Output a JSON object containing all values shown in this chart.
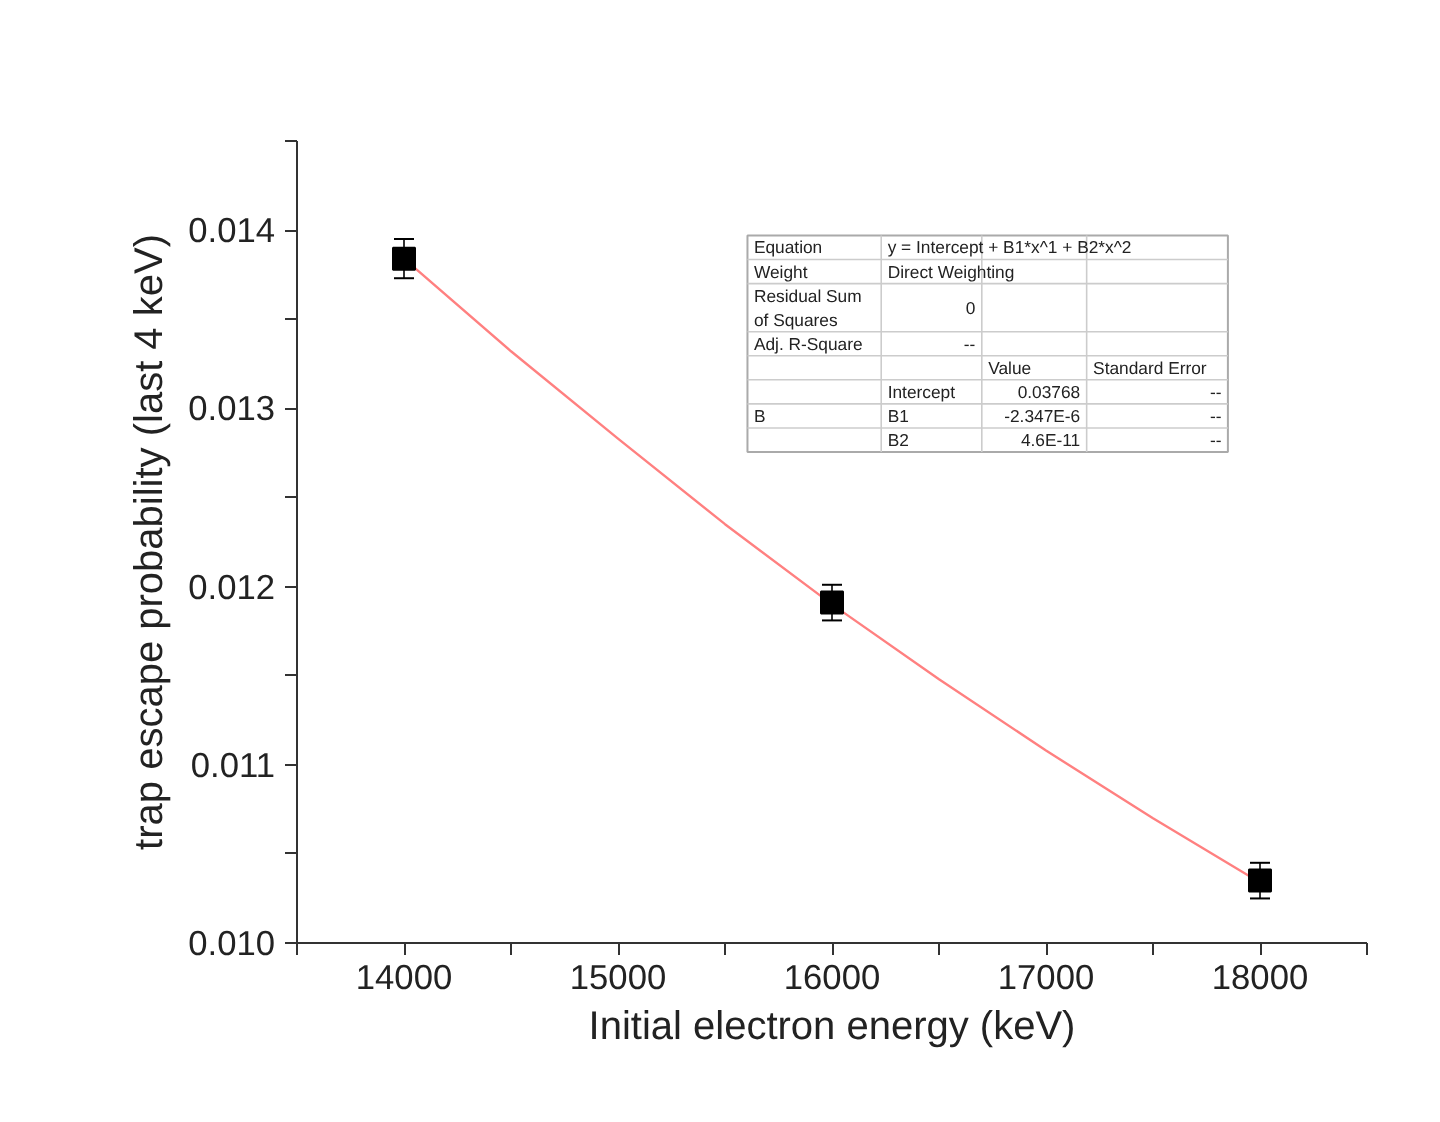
{
  "chart_data": {
    "type": "scatter",
    "xlabel": "Initial electron energy (keV)",
    "ylabel": "trap escape probability (last 4 keV)",
    "xlim": [
      13500,
      18500
    ],
    "ylim": [
      0.01,
      0.0145
    ],
    "xticks": [
      {
        "value": 13500,
        "label": null
      },
      14000,
      {
        "value": 14500,
        "label": null
      },
      15000,
      {
        "value": 15500,
        "label": null
      },
      16000,
      {
        "value": 16500,
        "label": null
      },
      17000,
      {
        "value": 17500,
        "label": null
      },
      18000,
      {
        "value": 18500,
        "label": null
      }
    ],
    "yticks": [
      {
        "value": 0.01,
        "label": "0.010"
      },
      {
        "value": 0.0105,
        "label": null
      },
      0.011,
      {
        "value": 0.0115,
        "label": null
      },
      0.012,
      {
        "value": 0.0125,
        "label": null
      },
      0.013,
      {
        "value": 0.0135,
        "label": null
      },
      0.014,
      {
        "value": 0.0145,
        "label": null
      }
    ],
    "grid": false,
    "series": [
      {
        "type": "line",
        "color": "#ff8080",
        "line_style": "solid",
        "marker": "none",
        "x": [
          14000,
          14500,
          15000,
          15500,
          16000,
          16500,
          17000,
          17500,
          18000
        ],
        "values": [
          0.01384,
          0.01332,
          0.01283,
          0.01235,
          0.0119,
          0.01148,
          0.01108,
          0.0107,
          0.01034
        ]
      },
      {
        "color": "#000000",
        "marker": "square",
        "x": [
          14000,
          16000,
          18000
        ],
        "values": [
          0.01384,
          0.01191,
          0.01035
        ],
        "errors": [
          0.00011,
          0.0001,
          0.0001
        ]
      }
    ],
    "annotations": [
      "Equation",
      "y = Intercept + B1*x^1 + B2*x^2",
      "Weight",
      "Direct Weighting",
      "Residual Sum of Squares",
      "0",
      "Adj. R-Square",
      "--",
      "Value",
      "Standard Error",
      "B",
      "Intercept",
      "0.03768",
      "--",
      "B1",
      "-2.347E-6",
      "--",
      "B2",
      "4.6E-11",
      "--"
    ]
  }
}
